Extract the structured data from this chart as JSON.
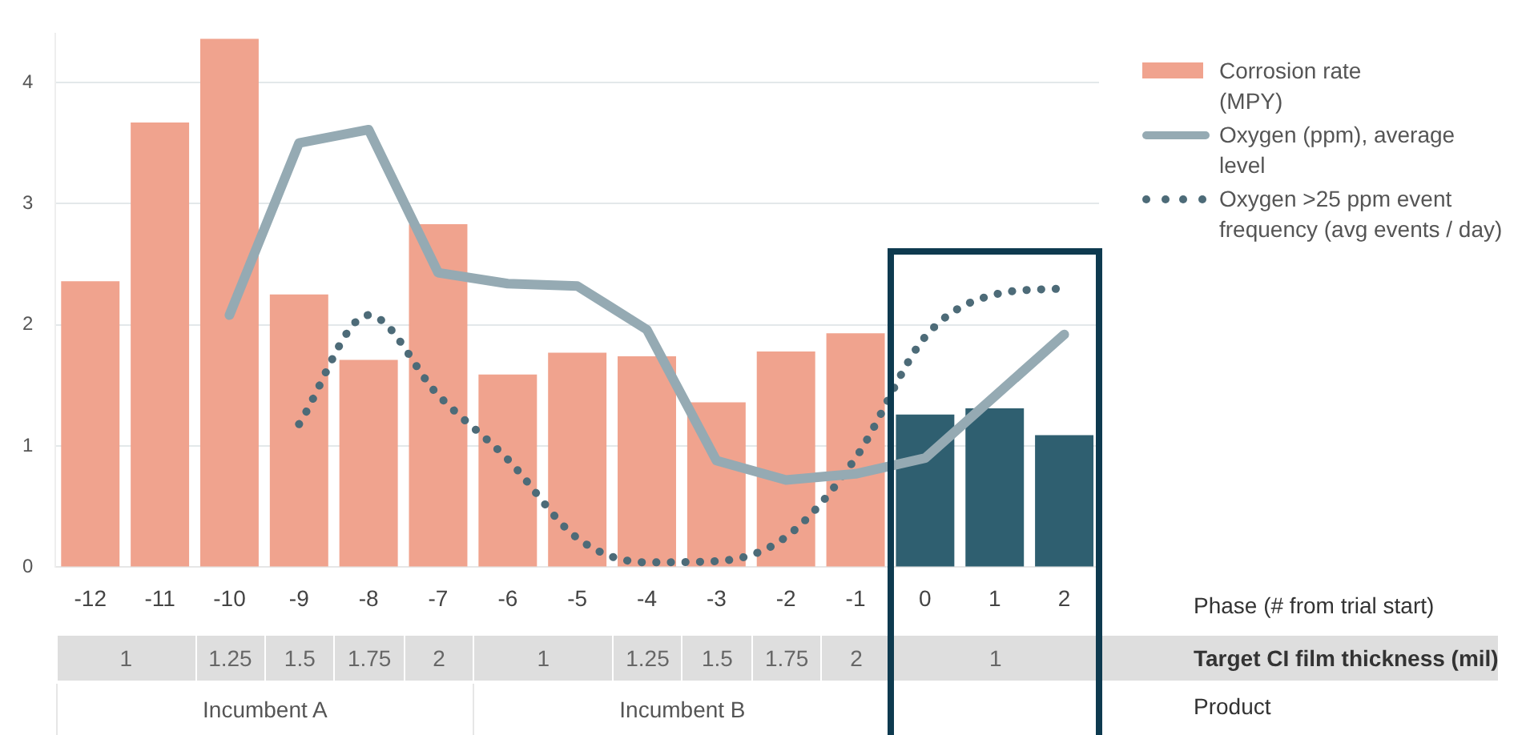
{
  "chart_data": {
    "type": "bar",
    "xlabel": "Phase (# from trial start)",
    "categories": [
      "-12",
      "-11",
      "-10",
      "-9",
      "-8",
      "-7",
      "-6",
      "-5",
      "-4",
      "-3",
      "-2",
      "-1",
      "0",
      "1",
      "2"
    ],
    "series": [
      {
        "name": "Corrosion rate (MPY)",
        "color": "#f0a38e",
        "colors": [
          "#f0a38e",
          "#f0a38e",
          "#f0a38e",
          "#f0a38e",
          "#f0a38e",
          "#f0a38e",
          "#f0a38e",
          "#f0a38e",
          "#f0a38e",
          "#f0a38e",
          "#f0a38e",
          "#f0a38e",
          "#2f5f70",
          "#2f5f70",
          "#2f5f70"
        ],
        "values": [
          2.36,
          3.67,
          4.36,
          2.25,
          1.71,
          2.83,
          1.59,
          1.77,
          1.74,
          1.36,
          1.78,
          1.93,
          1.26,
          1.31,
          1.09
        ]
      },
      {
        "type": "line",
        "name": "Oxygen (ppm), average level",
        "color": "#95aab3",
        "line_style": "solid",
        "values": [
          null,
          null,
          2.08,
          3.5,
          3.61,
          2.43,
          2.34,
          2.32,
          1.96,
          0.88,
          0.72,
          0.77,
          0.9,
          1.41,
          1.92
        ]
      },
      {
        "type": "line",
        "name": "Oxygen >25 ppm event frequency (avg events / day)",
        "color": "#4d6b78",
        "line_style": "dotted",
        "values": [
          null,
          null,
          null,
          1.18,
          2.08,
          1.42,
          0.89,
          0.24,
          0.04,
          0.05,
          0.25,
          0.9,
          1.9,
          2.25,
          2.3
        ]
      }
    ],
    "ylim": [
      0,
      4.4
    ],
    "yticks": [
      0,
      1,
      2,
      3,
      4
    ],
    "grid": "y",
    "legend": "top right",
    "annotations": [
      "Target CI film thickness (mil)",
      "1",
      "1.25",
      "1.5",
      "1.75",
      "2",
      "1",
      "1.25",
      "1.5",
      "1.75",
      "2",
      "1",
      "Product",
      "Incumbent A",
      "Incumbent B"
    ]
  }
}
